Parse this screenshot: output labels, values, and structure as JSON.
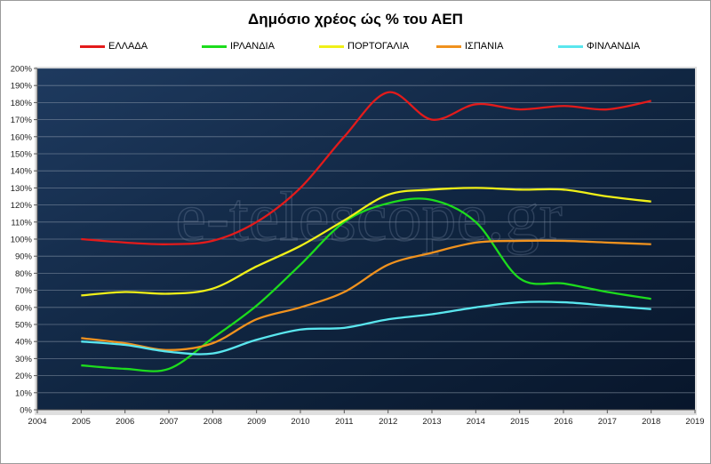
{
  "chart_data": {
    "type": "line",
    "title": "Δημόσιο χρέος ώς % του ΑΕΠ",
    "xlabel": "",
    "ylabel": "",
    "xlim": [
      2004,
      2019
    ],
    "ylim": [
      0,
      200
    ],
    "x_ticks": [
      "2004",
      "2005",
      "2006",
      "2007",
      "2008",
      "2009",
      "2010",
      "2011",
      "2012",
      "2013",
      "2014",
      "2015",
      "2016",
      "2017",
      "2018",
      "2019"
    ],
    "y_ticks": [
      "0%",
      "10%",
      "20%",
      "30%",
      "40%",
      "50%",
      "60%",
      "70%",
      "80%",
      "90%",
      "100%",
      "110%",
      "120%",
      "130%",
      "140%",
      "150%",
      "160%",
      "170%",
      "180%",
      "190%",
      "200%"
    ],
    "grid": true,
    "legend_position": "top",
    "watermark": "e-telescope.gr",
    "x": [
      2005,
      2006,
      2007,
      2008,
      2009,
      2010,
      2011,
      2012,
      2013,
      2014,
      2015,
      2016,
      2017,
      2018
    ],
    "series": [
      {
        "name": "ΕΛΛΑΔΑ",
        "color": "#e31b1b",
        "values": [
          100,
          98,
          97,
          99,
          110,
          130,
          160,
          186,
          170,
          179,
          176,
          178,
          176,
          181
        ]
      },
      {
        "name": "ΙΡΛΑΝΔΙΑ",
        "color": "#1ddc1d",
        "values": [
          26,
          24,
          24,
          42,
          61,
          85,
          110,
          121,
          123,
          110,
          77,
          74,
          69,
          65
        ]
      },
      {
        "name": "ΠΟΡΤΟΓΑΛΙΑ",
        "color": "#f0f018",
        "values": [
          67,
          69,
          68,
          71,
          84,
          96,
          111,
          126,
          129,
          130,
          129,
          129,
          125,
          122
        ]
      },
      {
        "name": "ΙΣΠΑΝΙΑ",
        "color": "#f0921e",
        "values": [
          42,
          39,
          35,
          39,
          53,
          60,
          69,
          85,
          92,
          98,
          99,
          99,
          98,
          97
        ]
      },
      {
        "name": "ΦΙΝΛΑΝΔΙΑ",
        "color": "#5ae6ee",
        "values": [
          40,
          38,
          34,
          33,
          41,
          47,
          48,
          53,
          56,
          60,
          63,
          63,
          61,
          59
        ]
      }
    ]
  }
}
